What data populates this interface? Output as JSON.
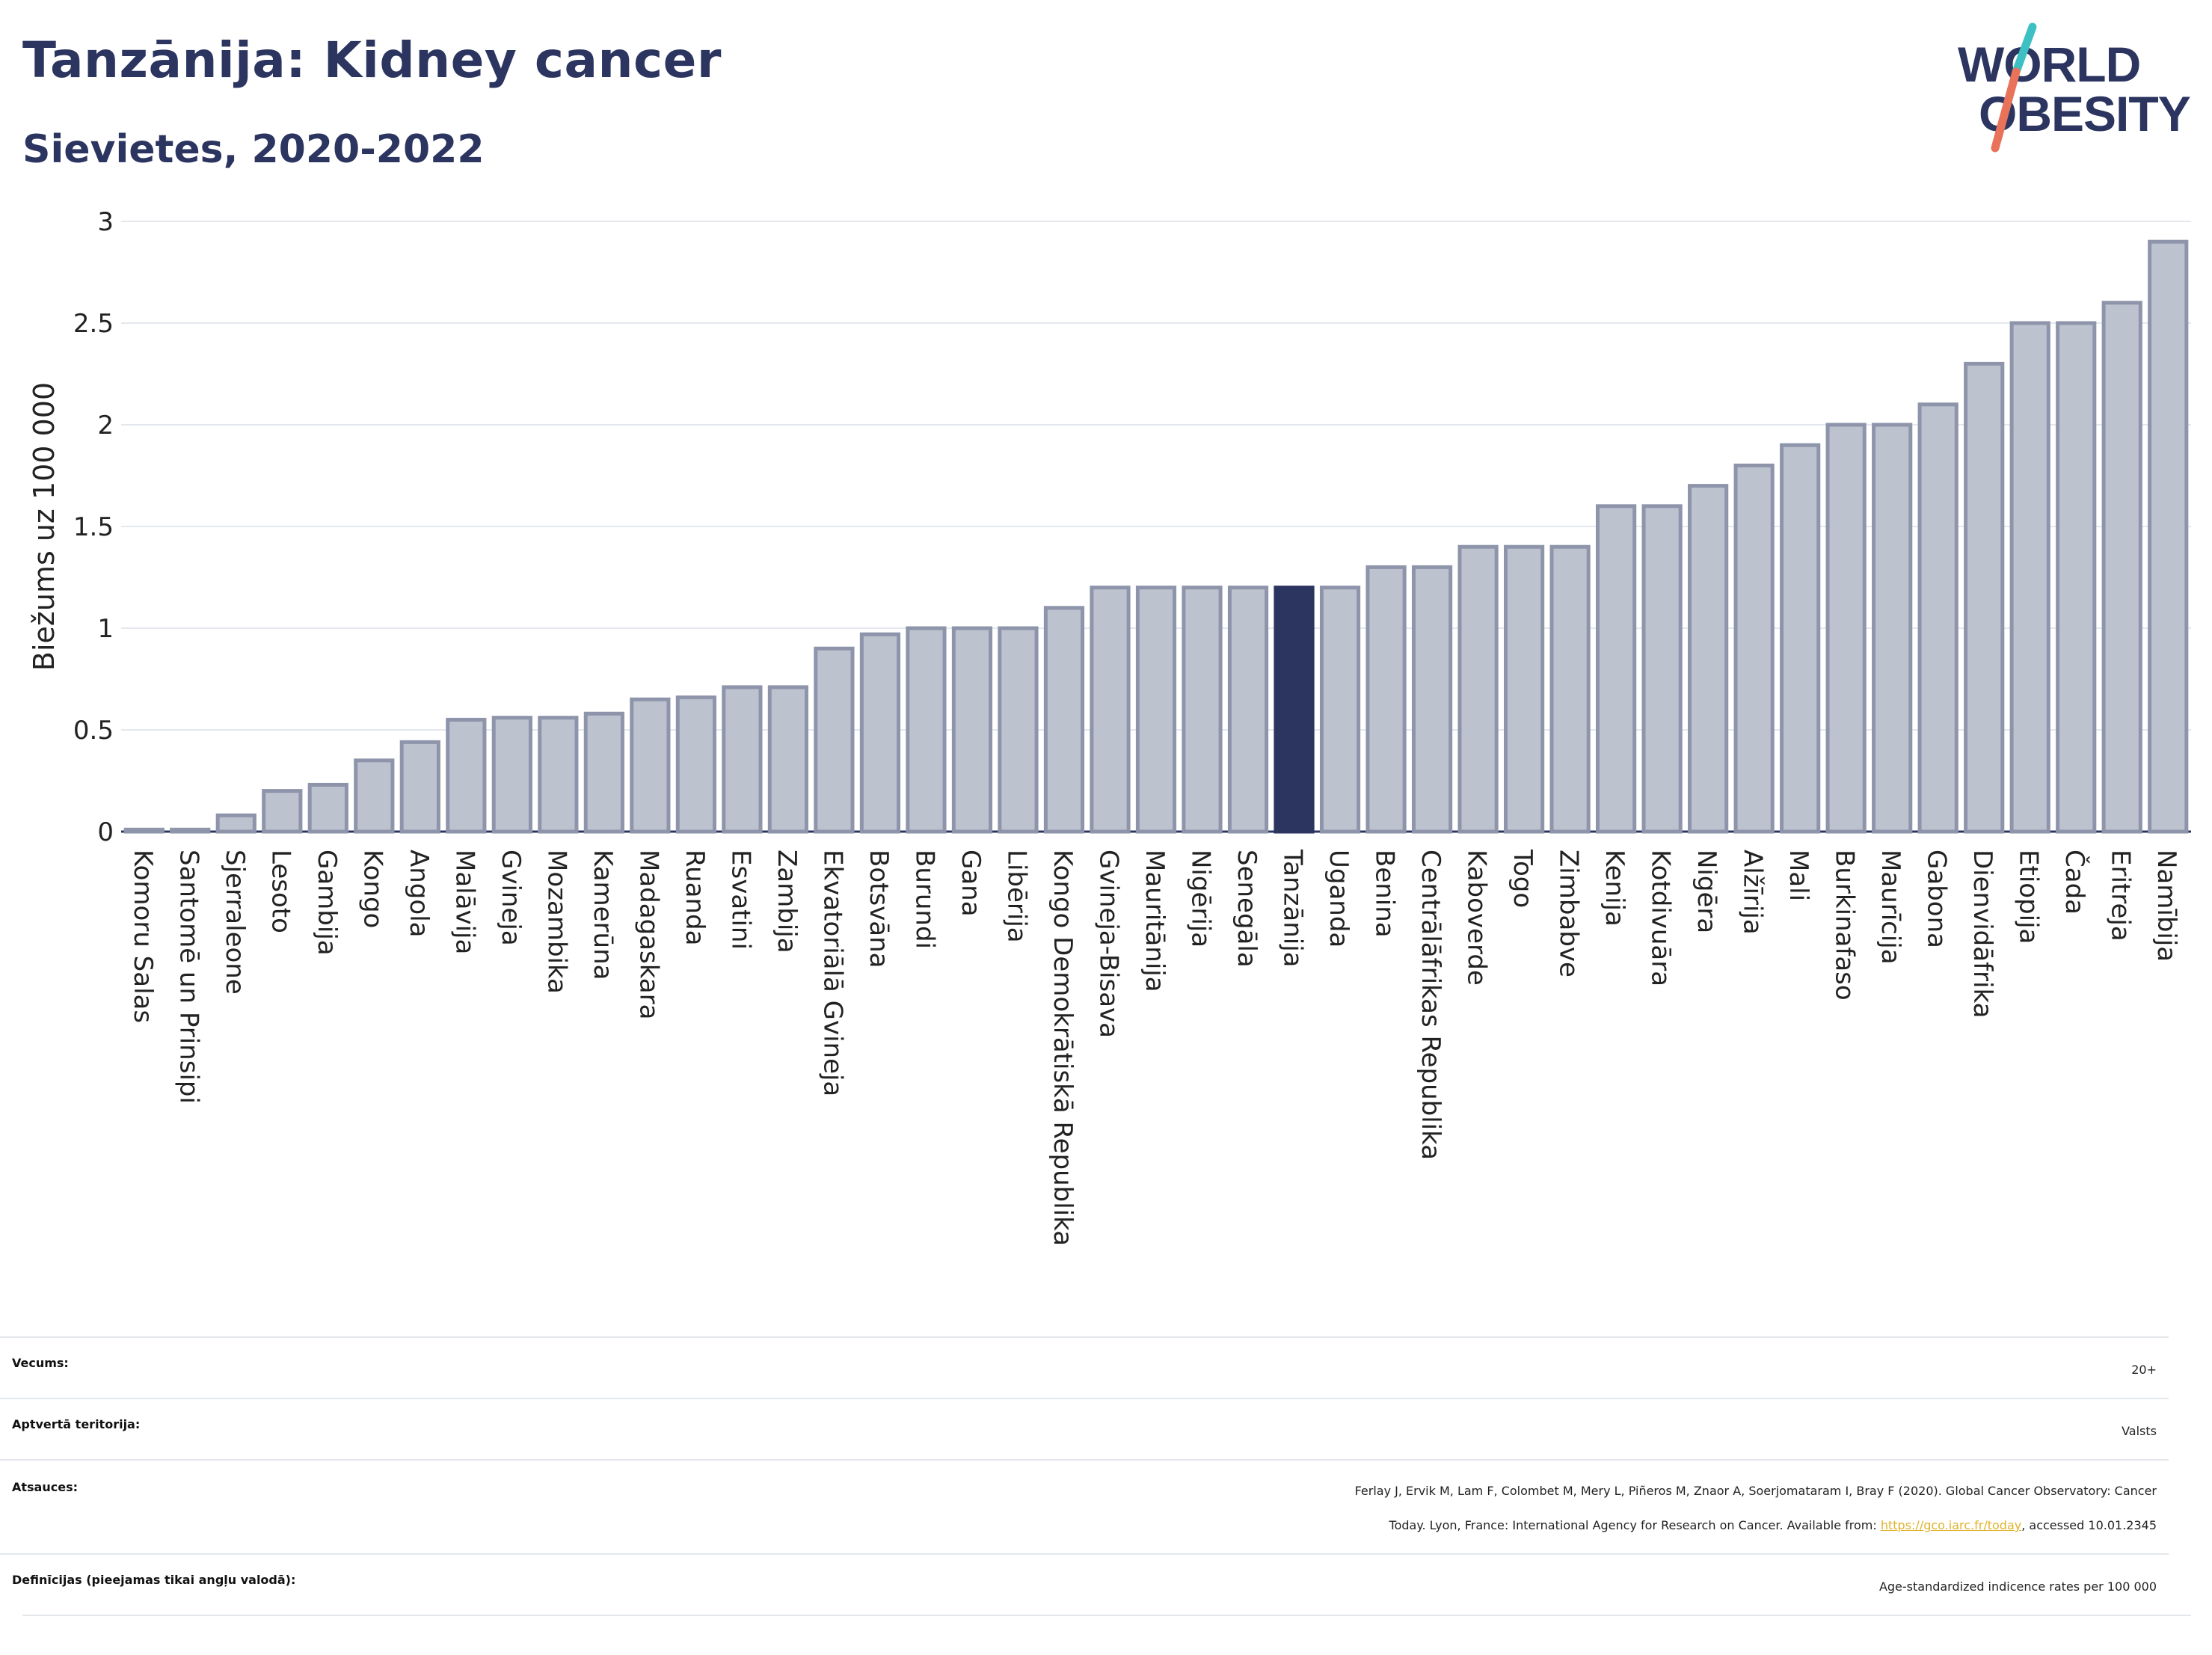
{
  "header": {
    "title": "Tanzānija: Kidney cancer",
    "subtitle": "Sievietes, 2020-2022"
  },
  "logo": {
    "line1": "WORLD",
    "line2": "OBESITY",
    "accent_colors": [
      "#3cc0c4",
      "#e8735a"
    ]
  },
  "colors": {
    "bar": "#bdc2cf",
    "bar_border": "#8e95ab",
    "highlight": "#2b3560",
    "grid": "#e4e8ee",
    "axis": "#2b3560"
  },
  "chart_data": {
    "type": "bar",
    "ylabel": "Biežums uz 100 000",
    "ylim": [
      0,
      3
    ],
    "yticks": [
      "0",
      "0.5",
      "1",
      "1.5",
      "2",
      "2.5",
      "3"
    ],
    "ytick_values": [
      0,
      0.5,
      1,
      1.5,
      2,
      2.5,
      3
    ],
    "grid": true,
    "highlight": "Tanzānija",
    "categories": [
      "Komoru Salas",
      "Santomē un Prinsipi",
      "Sjerraleone",
      "Lesoto",
      "Gambija",
      "Kongo",
      "Angola",
      "Malāvija",
      "Gvineja",
      "Mozambika",
      "Kamerūna",
      "Madagaskara",
      "Ruanda",
      "Esvatini",
      "Zambija",
      "Ekvatoriālā Gvineja",
      "Botsvāna",
      "Burundi",
      "Gana",
      "Libērija",
      "Kongo Demokrātiskā Republika",
      "Gvineja-Bisava",
      "Mauritānija",
      "Nigērija",
      "Senegāla",
      "Tanzānija",
      "Uganda",
      "Benina",
      "Centrālāfrikas Republika",
      "Kaboverde",
      "Togo",
      "Zimbabve",
      "Kenija",
      "Kotdivuāra",
      "Nigēra",
      "Alžīrija",
      "Mali",
      "Burkinafaso",
      "Maurīcija",
      "Gabona",
      "Dienvidāfrika",
      "Etiopija",
      "Čada",
      "Eritreja",
      "Namībija"
    ],
    "values": [
      0.01,
      0.01,
      0.08,
      0.2,
      0.23,
      0.35,
      0.44,
      0.55,
      0.56,
      0.56,
      0.58,
      0.65,
      0.66,
      0.71,
      0.71,
      0.9,
      0.97,
      1.0,
      1.0,
      1.0,
      1.1,
      1.2,
      1.2,
      1.2,
      1.2,
      1.2,
      1.2,
      1.3,
      1.3,
      1.4,
      1.4,
      1.4,
      1.6,
      1.6,
      1.7,
      1.8,
      1.9,
      2.0,
      2.0,
      2.1,
      2.3,
      2.5,
      2.5,
      2.6,
      2.9
    ]
  },
  "meta": {
    "age_label": "Vecums:",
    "age_value": "20+",
    "coverage_label": "Aptvertā teritorija:",
    "coverage_value": "Valsts",
    "refs_label": "Atsauces:",
    "refs_line1": "Ferlay J, Ervik M, Lam F, Colombet M, Mery L, Piñeros M, Znaor A, Soerjomataram I, Bray F (2020). Global Cancer Observatory: Cancer",
    "refs_line2_pre": "Today. Lyon, France: International Agency for Research on Cancer. Available from: ",
    "refs_link": "https://gco.iarc.fr/today",
    "refs_line2_post": ", accessed 10.01.2345",
    "defs_label": "Definīcijas (pieejamas tikai angļu valodā):",
    "defs_value": "Age-standardized indicence rates per 100 000"
  }
}
